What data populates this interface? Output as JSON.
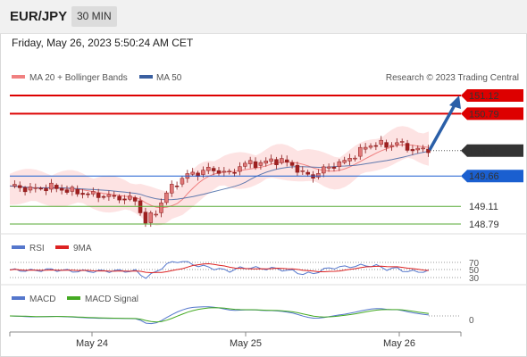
{
  "header": {
    "pair": "EUR/JPY",
    "timeframe": "30 MIN"
  },
  "datetime": "Friday, May 26, 2023 5:50:24 AM CET",
  "watermark": "Research © 2023 Trading Central",
  "legend": {
    "main": [
      {
        "label": "MA 20 + Bollinger Bands",
        "color": "#f08080"
      },
      {
        "label": "MA 50",
        "color": "#3a5fa0"
      }
    ],
    "rsi": [
      {
        "label": "RSI",
        "color": "#5577cc"
      },
      {
        "label": "9MA",
        "color": "#dd2222"
      }
    ],
    "macd": [
      {
        "label": "MACD",
        "color": "#5577cc"
      },
      {
        "label": "MACD Signal",
        "color": "#44aa22"
      }
    ]
  },
  "levels": [
    {
      "value": 151.12,
      "label": "151.12",
      "color": "#dd0000",
      "kind": "resistance"
    },
    {
      "value": 150.79,
      "label": "150.79",
      "color": "#dd0000",
      "kind": "resistance"
    },
    {
      "value": 150.12,
      "label": "150.12",
      "color": "#333333",
      "kind": "last"
    },
    {
      "value": 149.66,
      "label": "149.66",
      "color": "#1a5fd0",
      "kind": "pivot"
    },
    {
      "value": 149.11,
      "label": "149.11",
      "color": "#55aa33",
      "kind": "support"
    },
    {
      "value": 148.79,
      "label": "148.79",
      "color": "#55aa33",
      "kind": "support"
    }
  ],
  "rsi_levels": [
    "70",
    "50",
    "30"
  ],
  "macd_zero": "0",
  "chart_data": {
    "type": "candlestick",
    "x_ticks": [
      "May 24",
      "May 25",
      "May 26"
    ],
    "y_range": [
      148.6,
      151.3
    ],
    "last_price": 150.12,
    "target": 151.12,
    "price_path": [
      [
        0,
        149.48
      ],
      [
        4,
        149.42
      ],
      [
        8,
        149.46
      ],
      [
        12,
        149.38
      ],
      [
        16,
        149.32
      ],
      [
        20,
        149.28
      ],
      [
        24,
        149.22
      ],
      [
        26,
        148.82
      ],
      [
        28,
        149.02
      ],
      [
        30,
        149.35
      ],
      [
        32,
        149.55
      ],
      [
        34,
        149.68
      ],
      [
        36,
        149.72
      ],
      [
        38,
        149.78
      ],
      [
        40,
        149.75
      ],
      [
        42,
        149.7
      ],
      [
        44,
        149.84
      ],
      [
        46,
        149.9
      ],
      [
        48,
        149.88
      ],
      [
        50,
        149.95
      ],
      [
        52,
        149.93
      ],
      [
        54,
        149.86
      ],
      [
        56,
        149.7
      ],
      [
        58,
        149.66
      ],
      [
        60,
        149.78
      ],
      [
        62,
        149.86
      ],
      [
        64,
        149.92
      ],
      [
        66,
        150.05
      ],
      [
        68,
        150.18
      ],
      [
        70,
        150.26
      ],
      [
        72,
        150.2
      ],
      [
        74,
        150.28
      ],
      [
        76,
        150.16
      ],
      [
        78,
        150.14
      ],
      [
        80,
        150.12
      ]
    ]
  }
}
